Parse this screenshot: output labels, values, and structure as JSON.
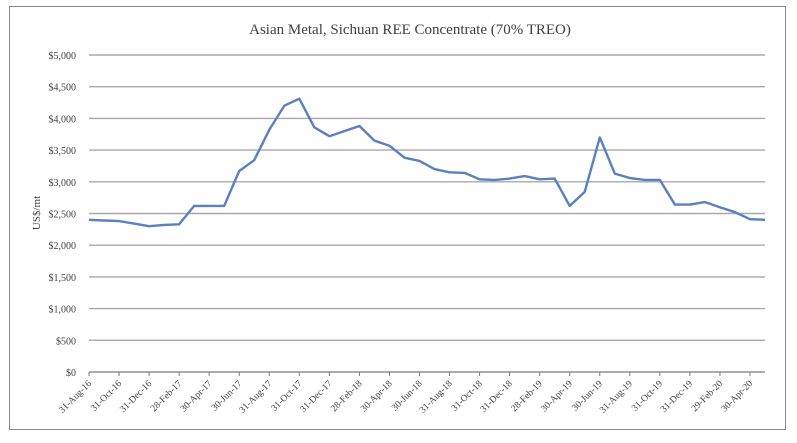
{
  "chart_data": {
    "type": "line",
    "title": "Asian Metal, Sichuan REE Concentrate (70% TREO)",
    "xlabel": "",
    "ylabel": "US$/mt",
    "ylim": [
      0,
      5000
    ],
    "yticks": [
      0,
      500,
      1000,
      1500,
      2000,
      2500,
      3000,
      3500,
      4000,
      4500,
      5000
    ],
    "ytick_labels": [
      "$0",
      "$500",
      "$1,000",
      "$1,500",
      "$2,000",
      "$2,500",
      "$3,000",
      "$3,500",
      "$4,000",
      "$4,500",
      "$5,000"
    ],
    "grid": true,
    "x": [
      "Aug-16",
      "Sep-16",
      "Oct-16",
      "Nov-16",
      "Dec-16",
      "Jan-17",
      "Feb-17",
      "Mar-17",
      "Apr-17",
      "May-17",
      "Jun-17",
      "Jul-17",
      "Aug-17",
      "Sep-17",
      "Oct-17",
      "Nov-17",
      "Dec-17",
      "Jan-18",
      "Feb-18",
      "Mar-18",
      "Apr-18",
      "May-18",
      "Jun-18",
      "Jul-18",
      "Aug-18",
      "Sep-18",
      "Oct-18",
      "Nov-18",
      "Dec-18",
      "Jan-19",
      "Feb-19",
      "Mar-19",
      "Apr-19",
      "May-19",
      "Jun-19",
      "Jul-19",
      "Aug-19",
      "Sep-19",
      "Oct-19",
      "Nov-19",
      "Dec-19",
      "Jan-20",
      "Feb-20",
      "Mar-20",
      "Apr-20",
      "May-20"
    ],
    "xtick_labels": [
      "31-Aug-16",
      "31-Oct-16",
      "31-Dec-16",
      "28-Feb-17",
      "30-Apr-17",
      "30-Jun-17",
      "31-Aug-17",
      "31-Oct-17",
      "31-Dec-17",
      "28-Feb-18",
      "30-Apr-18",
      "30-Jun-18",
      "31-Aug-18",
      "31-Oct-18",
      "31-Dec-18",
      "28-Feb-19",
      "30-Apr-19",
      "30-Jun-19",
      "31-Aug-19",
      "31-Oct-19",
      "31-Dec-19",
      "29-Feb-20",
      "30-Apr-20"
    ],
    "series": [
      {
        "name": "Sichuan REE Concentrate",
        "color": "#5b7fbf",
        "values": [
          2400,
          2390,
          2380,
          2340,
          2300,
          2320,
          2330,
          2620,
          2620,
          2620,
          3170,
          3340,
          3820,
          4200,
          4310,
          3860,
          3720,
          3800,
          3880,
          3650,
          3570,
          3380,
          3330,
          3200,
          3150,
          3140,
          3040,
          3030,
          3050,
          3090,
          3040,
          3050,
          2620,
          2840,
          3700,
          3130,
          3060,
          3030,
          3030,
          2640,
          2640,
          2680,
          2600,
          2520,
          2410,
          2400
        ]
      }
    ]
  }
}
